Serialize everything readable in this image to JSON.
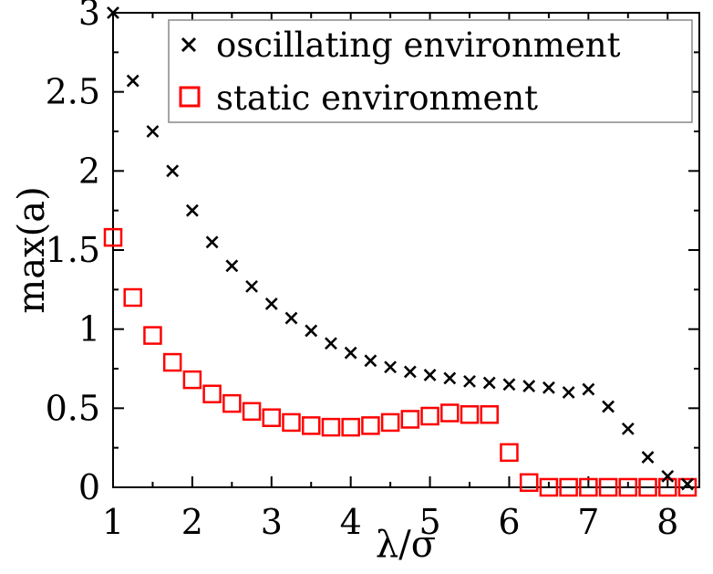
{
  "chart_data": {
    "type": "scatter",
    "xlabel": "λ/σ",
    "ylabel": "max(a)",
    "xlim": [
      1,
      8.4
    ],
    "ylim": [
      0,
      3
    ],
    "x_ticks": [
      "1",
      "2",
      "3",
      "4",
      "5",
      "6",
      "7",
      "8"
    ],
    "y_ticks": [
      "0",
      "0.5",
      "1",
      "1.5",
      "2",
      "2.5",
      "3"
    ],
    "grid": false,
    "legend_position": "top-right",
    "series": [
      {
        "name": "oscillating environment",
        "marker": "x",
        "color": "#000000",
        "points": [
          [
            1.0,
            3.0
          ],
          [
            1.25,
            2.57
          ],
          [
            1.5,
            2.25
          ],
          [
            1.75,
            2.0
          ],
          [
            2.0,
            1.75
          ],
          [
            2.25,
            1.55
          ],
          [
            2.5,
            1.4
          ],
          [
            2.75,
            1.27
          ],
          [
            3.0,
            1.16
          ],
          [
            3.25,
            1.07
          ],
          [
            3.5,
            0.99
          ],
          [
            3.75,
            0.91
          ],
          [
            4.0,
            0.85
          ],
          [
            4.25,
            0.8
          ],
          [
            4.5,
            0.76
          ],
          [
            4.75,
            0.73
          ],
          [
            5.0,
            0.71
          ],
          [
            5.25,
            0.69
          ],
          [
            5.5,
            0.67
          ],
          [
            5.75,
            0.66
          ],
          [
            6.0,
            0.65
          ],
          [
            6.25,
            0.64
          ],
          [
            6.5,
            0.63
          ],
          [
            6.75,
            0.6
          ],
          [
            7.0,
            0.62
          ],
          [
            7.25,
            0.51
          ],
          [
            7.5,
            0.37
          ],
          [
            7.75,
            0.19
          ],
          [
            8.0,
            0.07
          ],
          [
            8.25,
            0.02
          ]
        ]
      },
      {
        "name": "static environment",
        "marker": "square",
        "color": "#ff0000",
        "points": [
          [
            1.0,
            1.58
          ],
          [
            1.25,
            1.2
          ],
          [
            1.5,
            0.96
          ],
          [
            1.75,
            0.79
          ],
          [
            2.0,
            0.68
          ],
          [
            2.25,
            0.59
          ],
          [
            2.5,
            0.53
          ],
          [
            2.75,
            0.48
          ],
          [
            3.0,
            0.44
          ],
          [
            3.25,
            0.41
          ],
          [
            3.5,
            0.39
          ],
          [
            3.75,
            0.38
          ],
          [
            4.0,
            0.38
          ],
          [
            4.25,
            0.39
          ],
          [
            4.5,
            0.41
          ],
          [
            4.75,
            0.43
          ],
          [
            5.0,
            0.45
          ],
          [
            5.25,
            0.47
          ],
          [
            5.5,
            0.46
          ],
          [
            5.75,
            0.46
          ],
          [
            6.0,
            0.22
          ],
          [
            6.25,
            0.03
          ],
          [
            6.5,
            0.0
          ],
          [
            6.75,
            0.0
          ],
          [
            7.0,
            0.0
          ],
          [
            7.25,
            0.0
          ],
          [
            7.5,
            0.0
          ],
          [
            7.75,
            0.0
          ],
          [
            8.0,
            0.0
          ],
          [
            8.25,
            0.0
          ]
        ]
      }
    ]
  }
}
